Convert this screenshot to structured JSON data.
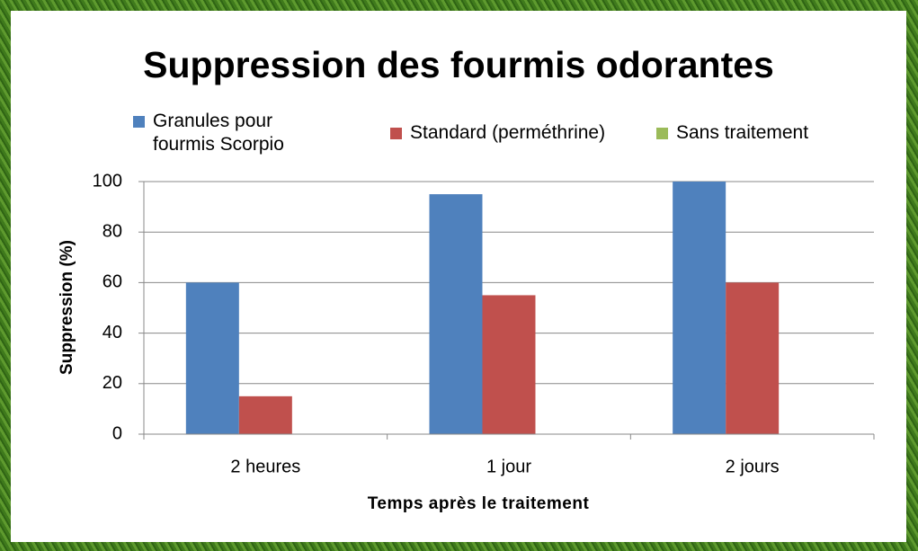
{
  "chart_data": {
    "type": "bar",
    "title": "Suppression des fourmis odorantes",
    "x_label": "Temps après le traitement",
    "y_label": "Suppression (%)",
    "categories": [
      "2 heures",
      "1 jour",
      "2 jours"
    ],
    "series": [
      {
        "name": "Granules pour fourmis Scorpio",
        "color": "#4f81bd",
        "values": [
          60,
          95,
          100
        ]
      },
      {
        "name": "Standard (perméthrine)",
        "color": "#c0504d",
        "values": [
          15,
          55,
          60
        ]
      },
      {
        "name": "Sans traitement",
        "color": "#9bbb59",
        "values": [
          0,
          0,
          0
        ]
      }
    ],
    "ylim": [
      0,
      100
    ],
    "yticks": [
      0,
      20,
      40,
      60,
      80,
      100
    ],
    "grid": true,
    "legend": "top"
  }
}
